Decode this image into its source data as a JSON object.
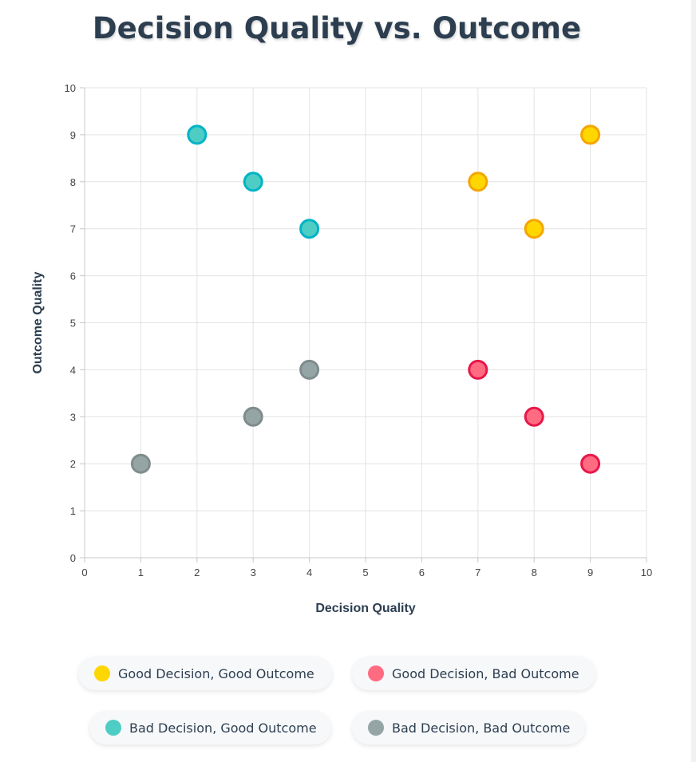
{
  "chart_data": {
    "type": "scatter",
    "title": "Decision Quality vs. Outcome",
    "xlabel": "Decision Quality",
    "ylabel": "Outcome Quality",
    "xlim": [
      0,
      10
    ],
    "ylim": [
      0,
      10
    ],
    "x_ticks": [
      "0",
      "1",
      "2",
      "3",
      "4",
      "5",
      "6",
      "7",
      "8",
      "9",
      "10"
    ],
    "y_ticks": [
      "0",
      "1",
      "2",
      "3",
      "4",
      "5",
      "6",
      "7",
      "8",
      "9",
      "10"
    ],
    "grid": true,
    "legend_position": "bottom",
    "series": [
      {
        "name": "Good Decision, Good Outcome",
        "color": "#ffd700",
        "border": "#f5a500",
        "points": [
          {
            "x": 7,
            "y": 8
          },
          {
            "x": 8,
            "y": 7
          },
          {
            "x": 9,
            "y": 9
          }
        ]
      },
      {
        "name": "Good Decision, Bad Outcome",
        "color": "#ff6b81",
        "border": "#e8174a",
        "points": [
          {
            "x": 7,
            "y": 4
          },
          {
            "x": 8,
            "y": 3
          },
          {
            "x": 9,
            "y": 2
          }
        ]
      },
      {
        "name": "Bad Decision, Good Outcome",
        "color": "#4ecdc4",
        "border": "#00b3c6",
        "points": [
          {
            "x": 2,
            "y": 9
          },
          {
            "x": 3,
            "y": 8
          },
          {
            "x": 4,
            "y": 7
          }
        ]
      },
      {
        "name": "Bad Decision, Bad Outcome",
        "color": "#95a5a6",
        "border": "#7f8c8d",
        "points": [
          {
            "x": 1,
            "y": 2
          },
          {
            "x": 3,
            "y": 3
          },
          {
            "x": 4,
            "y": 4
          }
        ]
      }
    ]
  }
}
